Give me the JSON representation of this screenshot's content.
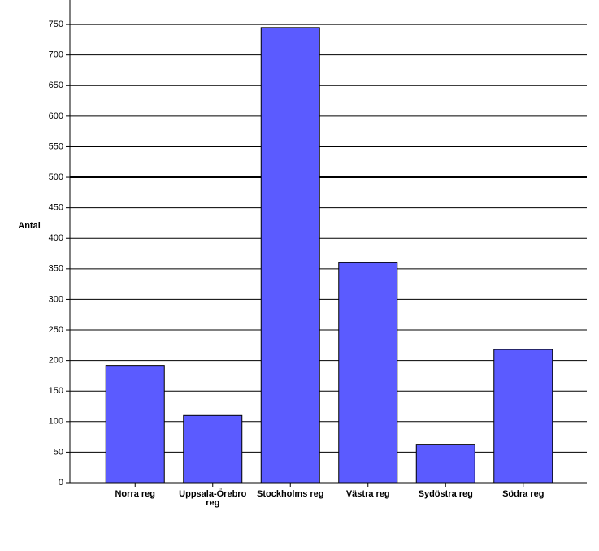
{
  "chart_data": {
    "type": "bar",
    "y_label": "Antal",
    "categories": [
      "Norra reg",
      "Uppsala-Örebro reg",
      "Stockholms reg",
      "Västra reg",
      "Sydöstra reg",
      "Södra reg"
    ],
    "values": [
      192,
      110,
      745,
      360,
      63,
      218
    ],
    "color": "#5b5bff",
    "ylim": [
      0,
      790
    ],
    "yticks": [
      0,
      50,
      100,
      150,
      200,
      250,
      300,
      350,
      400,
      450,
      500,
      550,
      600,
      650,
      700,
      750
    ],
    "grid": true,
    "reference_line": 500
  }
}
